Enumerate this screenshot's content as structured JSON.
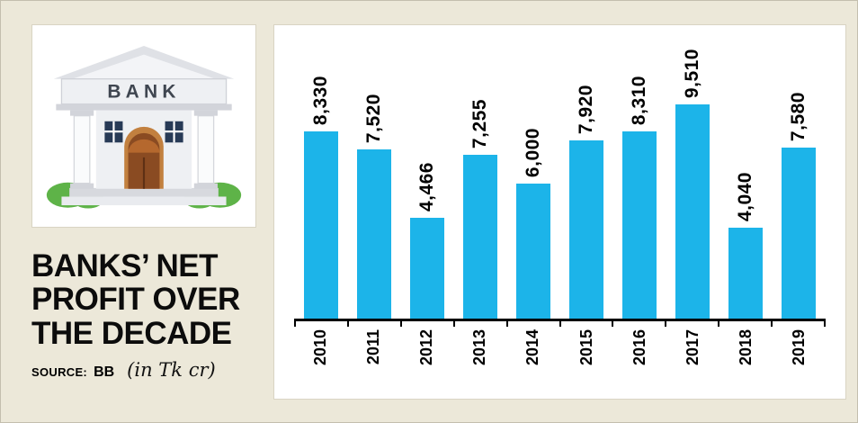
{
  "left": {
    "bank_sign": "BANK",
    "title_lines": [
      "BANKS’ NET",
      "PROFIT OVER",
      "THE DECADE"
    ],
    "source_label": "SOURCE:",
    "source_value": "BB",
    "unit_note": "(in Tk cr)"
  },
  "chart_data": {
    "type": "bar",
    "title": "BANKS' NET PROFIT OVER THE DECADE",
    "unit": "in Tk cr",
    "source": "BB",
    "categories": [
      "2010",
      "2011",
      "2012",
      "2013",
      "2014",
      "2015",
      "2016",
      "2017",
      "2018",
      "2019"
    ],
    "values": [
      8330,
      7520,
      4466,
      7255,
      6000,
      7920,
      8310,
      9510,
      4040,
      7580
    ],
    "labels": [
      "8,330",
      "7,520",
      "4,466",
      "7,255",
      "6,000",
      "7,920",
      "8,310",
      "9,510",
      "4,040",
      "7,580"
    ],
    "xlabel": "",
    "ylabel": "",
    "ylim": [
      0,
      9510
    ],
    "grid": false,
    "legend": false,
    "bar_color": "#1cb4e9",
    "axis_color": "#000000"
  }
}
